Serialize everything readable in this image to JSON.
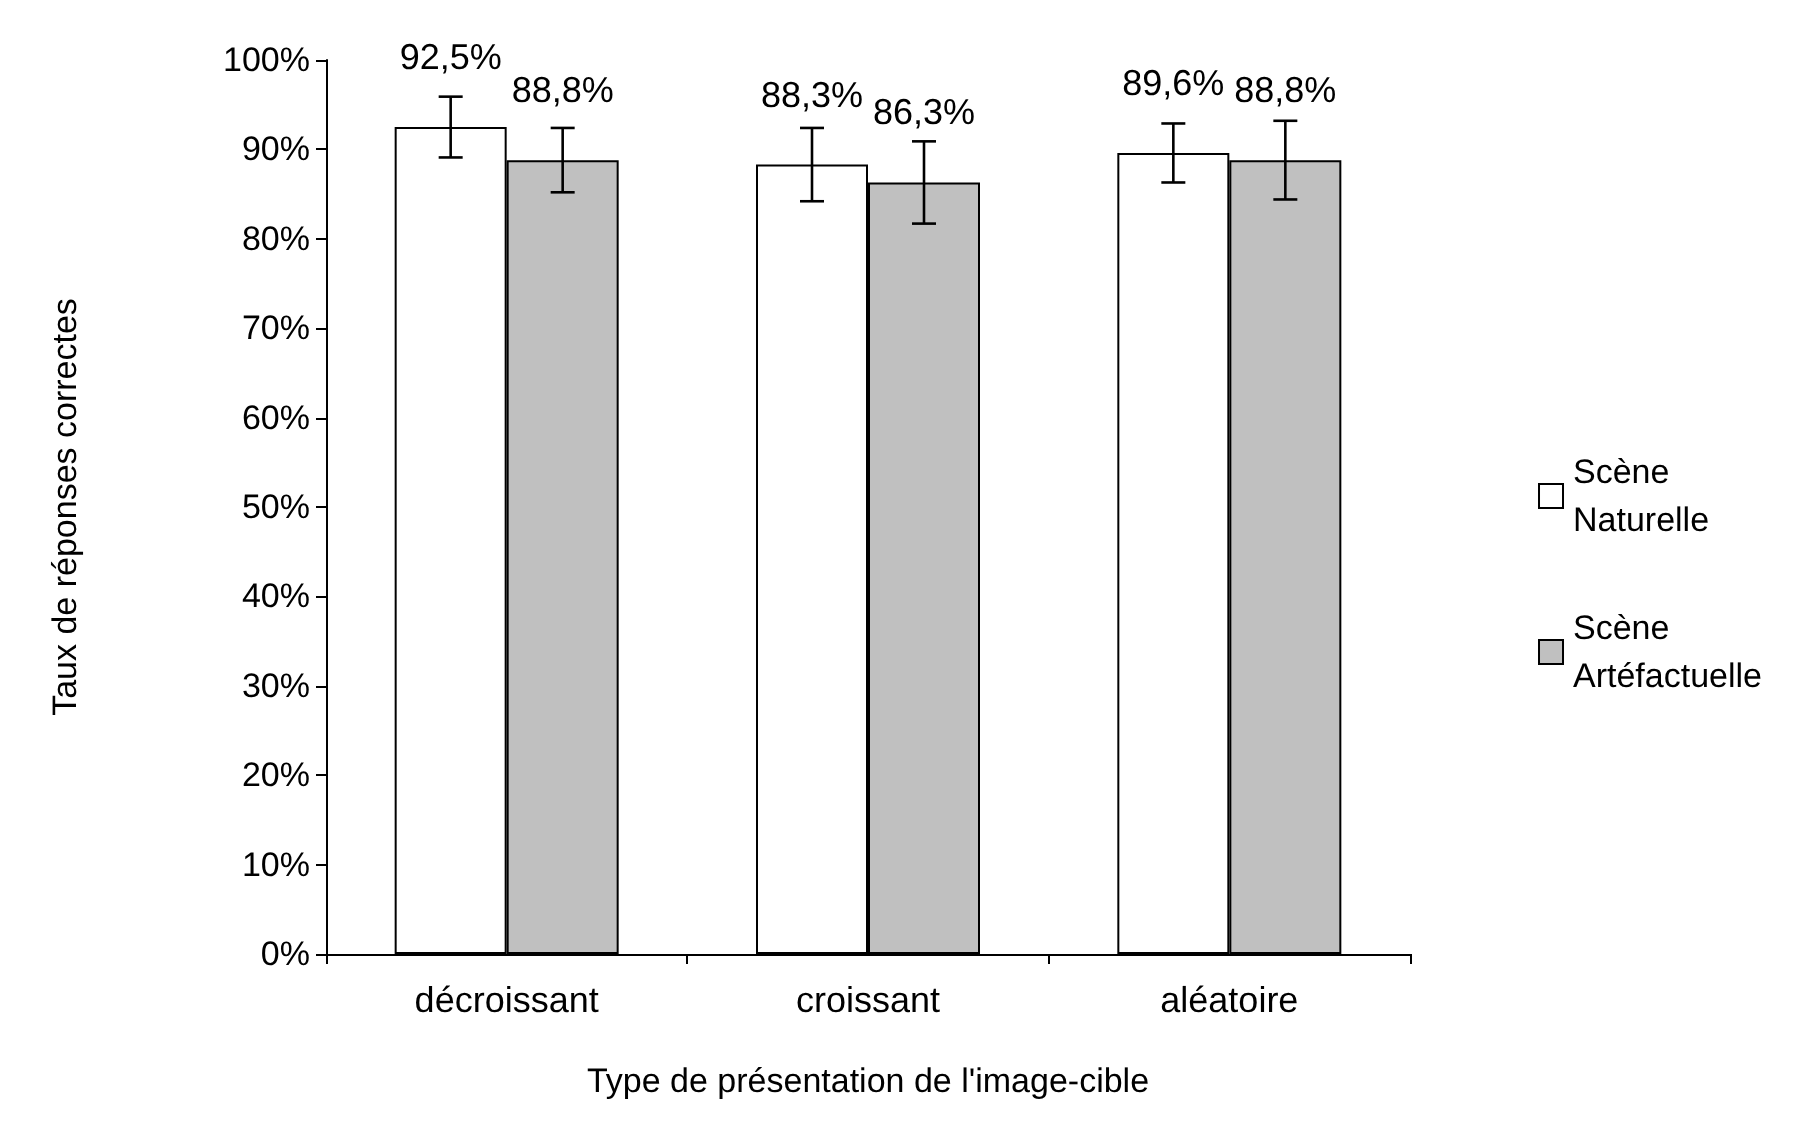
{
  "chart_data": {
    "type": "bar",
    "xlabel": "Type de présentation de l'image-cible",
    "ylabel": "Taux de réponses correctes",
    "categories": [
      "décroissant",
      "croissant",
      "aléatoire"
    ],
    "series": [
      {
        "name": "Scène Naturelle",
        "color": "#ffffff",
        "values": [
          92.5,
          88.3,
          89.6
        ],
        "errors": [
          3.4,
          4.1,
          3.3
        ],
        "value_labels": [
          "92,5%",
          "88,3%",
          "89,6%"
        ]
      },
      {
        "name": "Scène Artéfactuelle",
        "color": "#c0c0c0",
        "values": [
          88.8,
          86.3,
          88.8
        ],
        "errors": [
          3.6,
          4.6,
          4.4
        ],
        "value_labels": [
          "88,8%",
          "86,3%",
          "88,8%"
        ]
      }
    ],
    "ylim": [
      0,
      100
    ],
    "yticks": [
      {
        "value": 0,
        "label": "0%"
      },
      {
        "value": 10,
        "label": "10%"
      },
      {
        "value": 20,
        "label": "20%"
      },
      {
        "value": 30,
        "label": "30%"
      },
      {
        "value": 40,
        "label": "40%"
      },
      {
        "value": 50,
        "label": "50%"
      },
      {
        "value": 60,
        "label": "60%"
      },
      {
        "value": 70,
        "label": "70%"
      },
      {
        "value": 80,
        "label": "80%"
      },
      {
        "value": 90,
        "label": "90%"
      },
      {
        "value": 100,
        "label": "100%"
      }
    ],
    "grid": false,
    "legend": "right"
  }
}
